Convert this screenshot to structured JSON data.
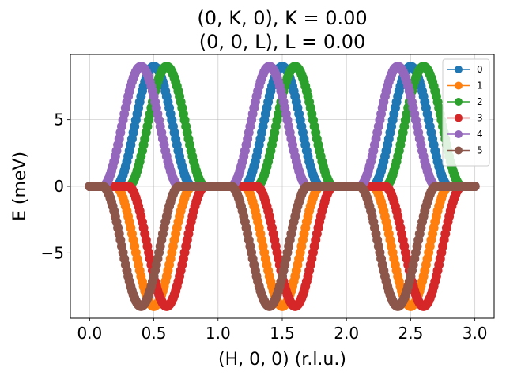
{
  "chart_data": {
    "type": "scatter",
    "title_line1": "(0, K, 0), K = 0.00",
    "title_line2": "(0, 0, L), L = 0.00",
    "xlabel": "(H, 0, 0) (r.l.u.)",
    "ylabel": "E (meV)",
    "xlim": [
      -0.15,
      3.15
    ],
    "ylim": [
      -9.9,
      9.9
    ],
    "xticks": [
      0.0,
      0.5,
      1.0,
      1.5,
      2.0,
      2.5,
      3.0
    ],
    "xtick_labels": [
      "0.0",
      "0.5",
      "1.0",
      "1.5",
      "2.0",
      "2.5",
      "3.0"
    ],
    "yticks": [
      -5,
      0,
      5
    ],
    "ytick_labels": [
      "−5",
      "0",
      "5"
    ],
    "grid": true,
    "legend_position": "top-right",
    "amplitude_meV": 9.0,
    "series": [
      {
        "name": "0",
        "color": "#1f77b4",
        "sign": 1,
        "peak_x": [
          0.5,
          1.5,
          2.5
        ],
        "zero_intervals": [
          [
            0.0,
            0.2
          ],
          [
            0.8,
            1.2
          ],
          [
            1.8,
            2.2
          ],
          [
            2.8,
            3.0
          ]
        ]
      },
      {
        "name": "1",
        "color": "#ff7f0e",
        "sign": -1,
        "peak_x": [
          0.5,
          1.5,
          2.5
        ],
        "zero_intervals": [
          [
            0.0,
            0.2
          ],
          [
            0.8,
            1.2
          ],
          [
            1.8,
            2.2
          ],
          [
            2.8,
            3.0
          ]
        ]
      },
      {
        "name": "2",
        "color": "#2ca02c",
        "sign": 1,
        "peak_x": [
          0.6,
          1.6,
          2.6
        ],
        "zero_intervals": [
          [
            0.0,
            0.3
          ],
          [
            0.9,
            1.3
          ],
          [
            1.9,
            2.3
          ],
          [
            2.9,
            3.0
          ]
        ]
      },
      {
        "name": "3",
        "color": "#d62728",
        "sign": -1,
        "peak_x": [
          0.6,
          1.6,
          2.6
        ],
        "zero_intervals": [
          [
            0.0,
            0.3
          ],
          [
            0.9,
            1.3
          ],
          [
            1.9,
            2.3
          ],
          [
            2.9,
            3.0
          ]
        ]
      },
      {
        "name": "4",
        "color": "#9467bd",
        "sign": 1,
        "peak_x": [
          0.4,
          1.4,
          2.4
        ],
        "zero_intervals": [
          [
            0.0,
            0.1
          ],
          [
            0.7,
            1.1
          ],
          [
            1.7,
            2.1
          ],
          [
            2.7,
            3.0
          ]
        ]
      },
      {
        "name": "5",
        "color": "#8c564b",
        "sign": -1,
        "peak_x": [
          0.4,
          1.4,
          2.4
        ],
        "zero_intervals": [
          [
            0.0,
            0.1
          ],
          [
            0.7,
            1.1
          ],
          [
            1.7,
            2.1
          ],
          [
            2.7,
            3.0
          ]
        ]
      }
    ]
  }
}
